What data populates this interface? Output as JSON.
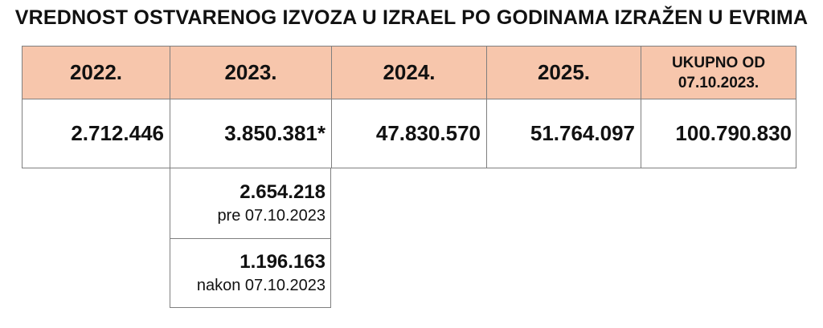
{
  "title": "VREDNOST OSTVARENOG IZVOZA U IZRAEL PO GODINAMA IZRAŽEN U EVRIMA",
  "table": {
    "headers": {
      "y2022": "2022.",
      "y2023": "2023.",
      "y2024": "2024.",
      "y2025": "2025.",
      "total_line1": "UKUPNO OD",
      "total_line2": "07.10.2023."
    },
    "values": {
      "y2022": "2.712.446",
      "y2023": "3.850.381*",
      "y2024": "47.830.570",
      "y2025": "51.764.097",
      "total": "100.790.830"
    }
  },
  "breakdown_2023": {
    "before": {
      "value": "2.654.218",
      "label": "pre 07.10.2023"
    },
    "after": {
      "value": "1.196.163",
      "label": "nakon 07.10.2023"
    }
  },
  "colors": {
    "header_background": "#f7c6ac",
    "border": "#7f7f7f",
    "text": "#111111"
  }
}
